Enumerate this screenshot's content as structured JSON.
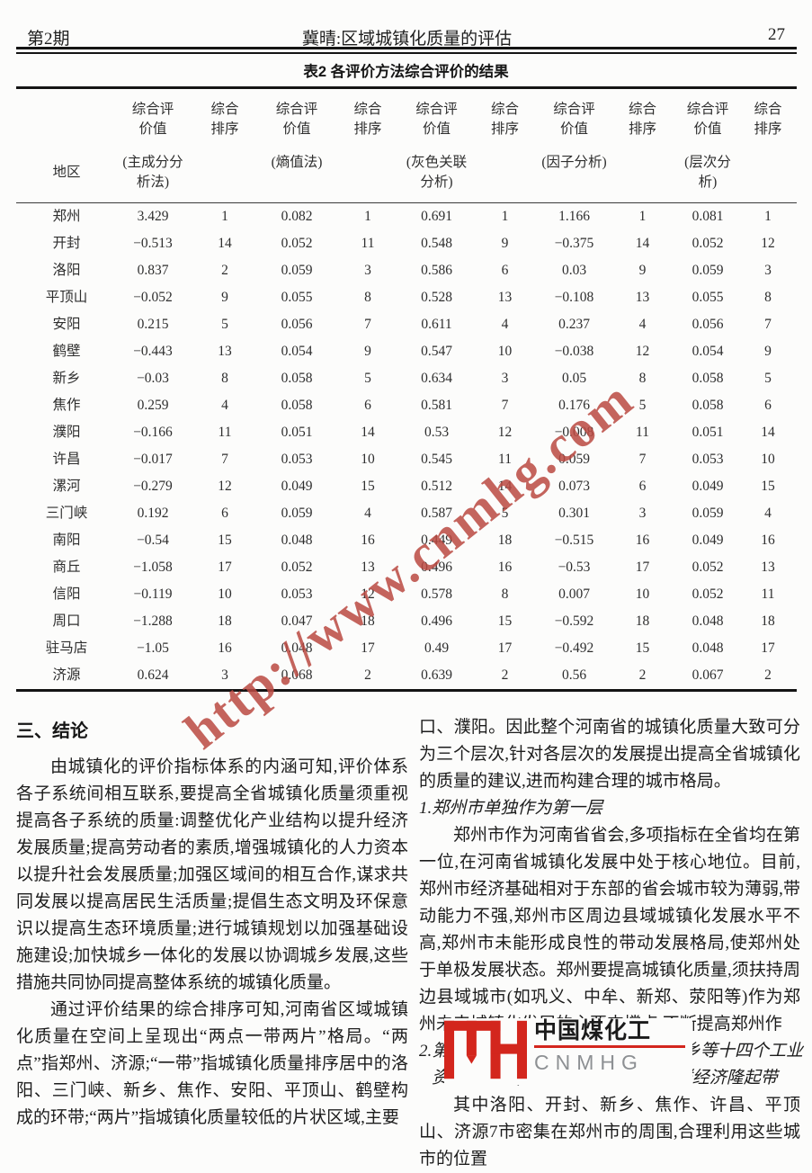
{
  "page_header": {
    "issue": "第2期",
    "running_title": "冀晴:区域城镇化质量的评估",
    "page_number": "27"
  },
  "table": {
    "title": "表2  各评价方法综合评价的结果",
    "header": {
      "region": "地区",
      "value_label": [
        "综合评",
        "价值"
      ],
      "rank_label": [
        "综合",
        "排序"
      ],
      "methods": [
        [
          "(主成分分",
          "析法)"
        ],
        [
          "(熵值法)"
        ],
        [
          "(灰色关联",
          "分析)"
        ],
        [
          "(因子分析)"
        ],
        [
          "(层次分析)"
        ]
      ]
    },
    "rows": [
      {
        "region": "郑州",
        "values": [
          "3.429",
          "1",
          "0.082",
          "1",
          "0.691",
          "1",
          "1.166",
          "1",
          "0.081",
          "1"
        ]
      },
      {
        "region": "开封",
        "values": [
          "−0.513",
          "14",
          "0.052",
          "11",
          "0.548",
          "9",
          "−0.375",
          "14",
          "0.052",
          "12"
        ]
      },
      {
        "region": "洛阳",
        "values": [
          "0.837",
          "2",
          "0.059",
          "3",
          "0.586",
          "6",
          "0.03",
          "9",
          "0.059",
          "3"
        ]
      },
      {
        "region": "平顶山",
        "values": [
          "−0.052",
          "9",
          "0.055",
          "8",
          "0.528",
          "13",
          "−0.108",
          "13",
          "0.055",
          "8"
        ]
      },
      {
        "region": "安阳",
        "values": [
          "0.215",
          "5",
          "0.056",
          "7",
          "0.611",
          "4",
          "0.237",
          "4",
          "0.056",
          "7"
        ]
      },
      {
        "region": "鹤壁",
        "values": [
          "−0.443",
          "13",
          "0.054",
          "9",
          "0.547",
          "10",
          "−0.038",
          "12",
          "0.054",
          "9"
        ]
      },
      {
        "region": "新乡",
        "values": [
          "−0.03",
          "8",
          "0.058",
          "5",
          "0.634",
          "3",
          "0.05",
          "8",
          "0.058",
          "5"
        ]
      },
      {
        "region": "焦作",
        "values": [
          "0.259",
          "4",
          "0.058",
          "6",
          "0.581",
          "7",
          "0.176",
          "5",
          "0.058",
          "6"
        ]
      },
      {
        "region": "濮阳",
        "values": [
          "−0.166",
          "11",
          "0.051",
          "14",
          "0.53",
          "12",
          "−0.008",
          "11",
          "0.051",
          "14"
        ]
      },
      {
        "region": "许昌",
        "values": [
          "−0.017",
          "7",
          "0.053",
          "10",
          "0.545",
          "11",
          "0.059",
          "7",
          "0.053",
          "10"
        ]
      },
      {
        "region": "漯河",
        "values": [
          "−0.279",
          "12",
          "0.049",
          "15",
          "0.512",
          "14",
          "0.073",
          "6",
          "0.049",
          "15"
        ]
      },
      {
        "region": "三门峡",
        "values": [
          "0.192",
          "6",
          "0.059",
          "4",
          "0.587",
          "5",
          "0.301",
          "3",
          "0.059",
          "4"
        ]
      },
      {
        "region": "南阳",
        "values": [
          "−0.54",
          "15",
          "0.048",
          "16",
          "0.449",
          "18",
          "−0.515",
          "16",
          "0.049",
          "16"
        ]
      },
      {
        "region": "商丘",
        "values": [
          "−1.058",
          "17",
          "0.052",
          "13",
          "0.496",
          "16",
          "−0.53",
          "17",
          "0.052",
          "13"
        ]
      },
      {
        "region": "信阳",
        "values": [
          "−0.119",
          "10",
          "0.053",
          "12",
          "0.578",
          "8",
          "0.007",
          "10",
          "0.052",
          "11"
        ]
      },
      {
        "region": "周口",
        "values": [
          "−1.288",
          "18",
          "0.047",
          "18",
          "0.496",
          "15",
          "−0.592",
          "18",
          "0.048",
          "18"
        ]
      },
      {
        "region": "驻马店",
        "values": [
          "−1.05",
          "16",
          "0.048",
          "17",
          "0.49",
          "17",
          "−0.492",
          "15",
          "0.048",
          "17"
        ]
      },
      {
        "region": "济源",
        "values": [
          "0.624",
          "3",
          "0.068",
          "2",
          "0.639",
          "2",
          "0.56",
          "2",
          "0.067",
          "2"
        ]
      }
    ]
  },
  "watermark": {
    "text": "http://www.cnmhg.com",
    "color": "#bb4a42"
  },
  "conclusion": {
    "heading": "三、结论",
    "p1": "由城镇化的评价指标体系的内涵可知,评价体系各子系统间相互联系,要提高全省城镇化质量须重视提高各子系统的质量:调整优化产业结构以提升经济发展质量;提高劳动者的素质,增强城镇化的人力资本以提升社会发展质量;加强区域间的相互合作,谋求共同发展以提高居民生活质量;提倡生态文明及环保意识以提高生态环境质量;进行城镇规划以加强基础设施建设;加快城乡一体化的发展以协调城乡发展,这些措施共同协同提高整体系统的城镇化质量。",
    "p2": "通过评价结果的综合排序可知,河南省区域城镇化质量在空间上呈现出“两点一带两片”格局。“两点”指郑州、济源;“一带”指城镇化质量排序居中的洛阳、三门峡、新乡、焦作、安阳、平顶山、鹤壁构成的环带;“两片”指城镇化质量较低的片状区域,主要"
  },
  "right_column": {
    "p1": "口、濮阳。因此整个河南省的城镇化质量大致可分为三个层次,针对各层次的发展提出提高全省城镇化的质量的建议,进而构建合理的城市格局。",
    "sub1": "1.郑州市单独作为第一层",
    "p2": "郑州市作为河南省省会,多项指标在全省均在第一位,在河南省城镇化发展中处于核心地位。目前,郑州市经济基础相对于东部的省会城市较为薄弱,带动能力不强,郑州市区周边县域城镇化发展水平不高,郑州市未能形成良性的带动发展格局,使郑州处于单极发展状态。郑州要提高城镇化质量,须扶持周边县域城市(如巩义、中牟、新郑、荥阳等)作为郑州未来城镇化发展的主要支撑点,不断提高郑州作",
    "sub2_start": "2.第",
    "sub2_rest": "昌、新乡等十四个工业",
    "sub2_line2": "资源型城市,形成了一个中原城市群经济隆起带",
    "p3": "其中洛阳、开封、新乡、焦作、许昌、平顶山、济源7市密集在郑州市的周围,合理利用这些城市的位置"
  },
  "logo": {
    "brand_cn": "中国煤化工",
    "brand_en": "CNMHG",
    "red": "#d3261d"
  }
}
